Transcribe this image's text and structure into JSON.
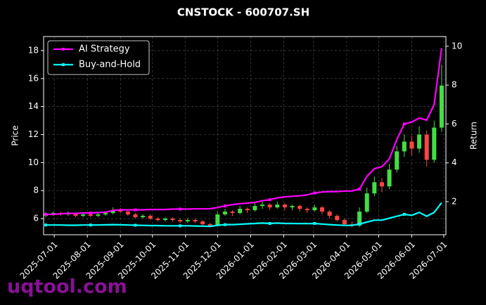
{
  "chart_data": {
    "type": "candlestick",
    "title": "CNSTOCK - 600707.SH",
    "y_label": "Price",
    "y2_label": "Return",
    "watermark": "uqtool.com",
    "legend": "upper left",
    "grid": true,
    "up_color": "#44dd44",
    "down_color": "#ff4444",
    "xlim": [
      "2025-06-21",
      "2026-07-03"
    ],
    "xticks": [
      "2025-07-01",
      "2025-08-01",
      "2025-09-01",
      "2025-10-01",
      "2025-11-01",
      "2025-12-01",
      "2026-01-01",
      "2026-02-01",
      "2026-03-01",
      "2026-04-01",
      "2026-05-01",
      "2026-06-01",
      "2026-07-01"
    ],
    "ylim": [
      4.85,
      19.0
    ],
    "yticks": [
      6,
      8,
      10,
      12,
      14,
      16,
      18
    ],
    "y2lim": [
      0.3,
      10.5
    ],
    "y2ticks": [
      2,
      4,
      6,
      8,
      10
    ],
    "x": [
      "2025-06-23",
      "2025-06-30",
      "2025-07-07",
      "2025-07-14",
      "2025-07-21",
      "2025-07-28",
      "2025-08-04",
      "2025-08-11",
      "2025-08-18",
      "2025-08-25",
      "2025-09-01",
      "2025-09-08",
      "2025-09-15",
      "2025-09-22",
      "2025-09-29",
      "2025-10-06",
      "2025-10-13",
      "2025-10-20",
      "2025-10-27",
      "2025-11-03",
      "2025-11-10",
      "2025-11-17",
      "2025-11-24",
      "2025-12-01",
      "2025-12-08",
      "2025-12-15",
      "2025-12-22",
      "2025-12-29",
      "2026-01-05",
      "2026-01-12",
      "2026-01-19",
      "2026-01-26",
      "2026-02-02",
      "2026-02-09",
      "2026-02-16",
      "2026-02-23",
      "2026-03-02",
      "2026-03-09",
      "2026-03-16",
      "2026-03-23",
      "2026-03-30",
      "2026-04-06",
      "2026-04-13",
      "2026-04-20",
      "2026-04-27",
      "2026-05-04",
      "2026-05-11",
      "2026-05-18",
      "2026-05-25",
      "2026-06-01",
      "2026-06-08",
      "2026-06-15",
      "2026-06-22",
      "2026-06-29"
    ],
    "open": [
      6.2,
      6.3,
      6.4,
      6.3,
      6.4,
      6.2,
      6.3,
      6.2,
      6.3,
      6.4,
      6.6,
      6.5,
      6.3,
      6.1,
      6.2,
      6.0,
      5.9,
      6.0,
      5.9,
      5.8,
      5.9,
      5.8,
      5.6,
      5.5,
      6.3,
      6.5,
      6.4,
      6.7,
      6.6,
      6.9,
      7.0,
      6.8,
      7.0,
      6.8,
      6.9,
      6.7,
      6.6,
      6.8,
      6.5,
      6.2,
      5.9,
      5.6,
      5.5,
      6.5,
      7.8,
      8.6,
      8.3,
      9.5,
      10.8,
      11.5,
      11.0,
      12.0,
      10.2,
      12.5
    ],
    "high": [
      6.45,
      6.5,
      6.5,
      6.5,
      6.45,
      6.4,
      6.4,
      6.4,
      6.5,
      6.8,
      6.75,
      6.6,
      6.4,
      6.3,
      6.3,
      6.1,
      6.1,
      6.1,
      6.0,
      6.0,
      6.0,
      5.9,
      5.7,
      6.5,
      6.7,
      6.6,
      6.9,
      6.8,
      7.1,
      7.2,
      7.1,
      7.2,
      7.1,
      7.0,
      7.0,
      6.8,
      7.0,
      6.9,
      6.6,
      6.3,
      6.0,
      5.8,
      6.8,
      8.2,
      9.0,
      8.9,
      9.9,
      11.2,
      12.0,
      11.9,
      12.6,
      12.3,
      13.0,
      17.0
    ],
    "low": [
      6.1,
      6.2,
      6.2,
      6.2,
      6.1,
      6.1,
      6.1,
      6.1,
      6.2,
      6.3,
      6.4,
      6.2,
      6.0,
      6.0,
      5.9,
      5.8,
      5.8,
      5.8,
      5.7,
      5.7,
      5.7,
      5.5,
      5.4,
      5.5,
      6.2,
      6.2,
      6.3,
      6.4,
      6.5,
      6.7,
      6.6,
      6.7,
      6.6,
      6.6,
      6.5,
      6.4,
      6.5,
      6.3,
      6.0,
      5.8,
      5.5,
      5.4,
      5.4,
      6.4,
      7.6,
      7.9,
      8.1,
      9.3,
      10.4,
      10.5,
      10.7,
      9.7,
      10.0,
      12.2
    ],
    "close": [
      6.3,
      6.4,
      6.3,
      6.4,
      6.2,
      6.3,
      6.2,
      6.3,
      6.4,
      6.6,
      6.5,
      6.3,
      6.1,
      6.2,
      6.0,
      5.9,
      6.0,
      5.9,
      5.8,
      5.9,
      5.8,
      5.6,
      5.5,
      6.3,
      6.5,
      6.4,
      6.7,
      6.6,
      6.9,
      7.0,
      6.8,
      7.0,
      6.8,
      6.9,
      6.7,
      6.6,
      6.8,
      6.5,
      6.2,
      5.9,
      5.6,
      5.5,
      6.5,
      7.8,
      8.6,
      8.3,
      9.5,
      10.8,
      11.5,
      11.0,
      12.0,
      10.2,
      12.5,
      15.5
    ],
    "series": [
      {
        "name": "AI Strategy",
        "color": "#ff00ff",
        "axis": "y2",
        "values": [
          1.35,
          1.35,
          1.38,
          1.4,
          1.4,
          1.42,
          1.42,
          1.44,
          1.46,
          1.55,
          1.58,
          1.58,
          1.58,
          1.58,
          1.6,
          1.6,
          1.6,
          1.62,
          1.62,
          1.62,
          1.63,
          1.63,
          1.64,
          1.7,
          1.78,
          1.85,
          1.9,
          1.92,
          1.96,
          2.05,
          2.1,
          2.2,
          2.25,
          2.28,
          2.3,
          2.35,
          2.45,
          2.5,
          2.52,
          2.52,
          2.55,
          2.55,
          2.65,
          3.3,
          3.7,
          3.8,
          4.2,
          5.2,
          6.0,
          6.1,
          6.3,
          6.2,
          7.0,
          9.9
        ]
      },
      {
        "name": "Buy-and-Hold",
        "color": "#00ffff",
        "axis": "y2",
        "values": [
          0.8,
          0.8,
          0.8,
          0.79,
          0.79,
          0.8,
          0.8,
          0.8,
          0.81,
          0.82,
          0.81,
          0.8,
          0.79,
          0.78,
          0.77,
          0.77,
          0.76,
          0.76,
          0.76,
          0.76,
          0.75,
          0.74,
          0.73,
          0.78,
          0.82,
          0.82,
          0.84,
          0.86,
          0.88,
          0.9,
          0.88,
          0.9,
          0.88,
          0.88,
          0.87,
          0.87,
          0.88,
          0.85,
          0.82,
          0.8,
          0.78,
          0.78,
          0.85,
          0.95,
          1.05,
          1.05,
          1.15,
          1.25,
          1.35,
          1.3,
          1.45,
          1.25,
          1.45,
          1.95
        ]
      }
    ]
  }
}
